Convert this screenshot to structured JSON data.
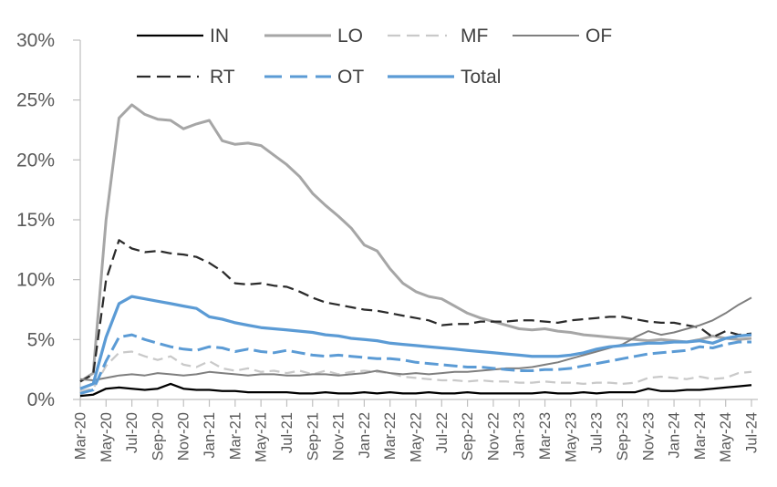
{
  "chart_data": {
    "type": "line",
    "title": "",
    "xlabel": "",
    "ylabel": "",
    "ylim": [
      0,
      30
    ],
    "grid": false,
    "legend_position": "top",
    "y_tick_labels": [
      "0%",
      "5%",
      "10%",
      "15%",
      "20%",
      "25%",
      "30%"
    ],
    "x_tick_labels": [
      "Mar-20",
      "May-20",
      "Jul-20",
      "Sep-20",
      "Nov-20",
      "Jan-21",
      "Mar-21",
      "May-21",
      "Jul-21",
      "Sep-21",
      "Nov-21",
      "Jan-22",
      "Mar-22",
      "May-22",
      "Jul-22",
      "Sep-22",
      "Nov-22",
      "Jan-23",
      "Mar-23",
      "May-23",
      "Jul-23",
      "Sep-23",
      "Nov-23",
      "Jan-24",
      "Mar-24",
      "May-24",
      "Jul-24"
    ],
    "categories": [
      "Mar-20",
      "Apr-20",
      "May-20",
      "Jun-20",
      "Jul-20",
      "Aug-20",
      "Sep-20",
      "Oct-20",
      "Nov-20",
      "Dec-20",
      "Jan-21",
      "Feb-21",
      "Mar-21",
      "Apr-21",
      "May-21",
      "Jun-21",
      "Jul-21",
      "Aug-21",
      "Sep-21",
      "Oct-21",
      "Nov-21",
      "Dec-21",
      "Jan-22",
      "Feb-22",
      "Mar-22",
      "Apr-22",
      "May-22",
      "Jun-22",
      "Jul-22",
      "Aug-22",
      "Sep-22",
      "Oct-22",
      "Nov-22",
      "Dec-22",
      "Jan-23",
      "Feb-23",
      "Mar-23",
      "Apr-23",
      "May-23",
      "Jun-23",
      "Jul-23",
      "Aug-23",
      "Sep-23",
      "Oct-23",
      "Nov-23",
      "Dec-23",
      "Jan-24",
      "Feb-24",
      "Mar-24",
      "Apr-24",
      "May-24",
      "Jun-24",
      "Jul-24"
    ],
    "colors": {
      "axis": "#bfbfbf",
      "tick_label": "#595959",
      "legend_label": "#404040",
      "blue_accent": "#5b9bd5"
    },
    "legend_rows": [
      [
        "IN",
        "LO",
        "MF",
        "OF"
      ],
      [
        "RT",
        "OT",
        "Total"
      ]
    ],
    "series": [
      {
        "name": "IN",
        "color": "#000000",
        "style": "solid",
        "width": 2.25,
        "values": [
          0.3,
          0.4,
          0.9,
          1.0,
          0.9,
          0.8,
          0.9,
          1.3,
          0.9,
          0.8,
          0.8,
          0.7,
          0.7,
          0.6,
          0.6,
          0.6,
          0.6,
          0.5,
          0.5,
          0.6,
          0.5,
          0.5,
          0.6,
          0.5,
          0.6,
          0.5,
          0.5,
          0.6,
          0.5,
          0.5,
          0.6,
          0.5,
          0.5,
          0.5,
          0.5,
          0.5,
          0.6,
          0.5,
          0.5,
          0.6,
          0.5,
          0.6,
          0.6,
          0.6,
          0.9,
          0.7,
          0.7,
          0.8,
          0.8,
          0.9,
          1.0,
          1.1,
          1.2
        ]
      },
      {
        "name": "LO",
        "color": "#a6a6a6",
        "style": "solid",
        "width": 3,
        "values": [
          1.5,
          2.2,
          15.0,
          23.5,
          24.6,
          23.8,
          23.4,
          23.3,
          22.6,
          23.0,
          23.3,
          21.6,
          21.3,
          21.4,
          21.2,
          20.4,
          19.6,
          18.6,
          17.2,
          16.2,
          15.3,
          14.3,
          12.9,
          12.4,
          10.9,
          9.7,
          9.0,
          8.6,
          8.4,
          7.8,
          7.2,
          6.8,
          6.5,
          6.2,
          5.9,
          5.8,
          5.9,
          5.7,
          5.6,
          5.4,
          5.3,
          5.2,
          5.1,
          5.0,
          4.9,
          5.0,
          4.9,
          4.8,
          5.0,
          5.3,
          5.1,
          5.0,
          5.1
        ]
      },
      {
        "name": "MF",
        "color": "#c9c9c9",
        "style": "dashed",
        "width": 2.25,
        "dash": "11,6",
        "legend_dash": "14,7,14,7,14,7,2,40",
        "values": [
          0.7,
          0.9,
          2.8,
          3.9,
          4.0,
          3.6,
          3.3,
          3.6,
          2.9,
          2.7,
          3.2,
          2.6,
          2.4,
          2.6,
          2.3,
          2.4,
          2.2,
          2.4,
          2.1,
          2.4,
          2.1,
          2.3,
          2.4,
          2.3,
          2.2,
          1.9,
          1.8,
          1.7,
          1.6,
          1.6,
          1.5,
          1.6,
          1.5,
          1.5,
          1.4,
          1.4,
          1.5,
          1.4,
          1.4,
          1.3,
          1.4,
          1.4,
          1.3,
          1.4,
          1.8,
          1.9,
          1.8,
          1.7,
          1.9,
          1.7,
          1.8,
          2.2,
          2.3
        ]
      },
      {
        "name": "OF",
        "color": "#7f7f7f",
        "style": "solid",
        "width": 2,
        "values": [
          1.7,
          1.6,
          1.8,
          2.0,
          2.1,
          2.0,
          2.2,
          2.1,
          2.0,
          2.1,
          2.3,
          2.2,
          2.1,
          2.0,
          2.1,
          2.1,
          2.0,
          2.0,
          2.1,
          2.1,
          2.0,
          2.1,
          2.2,
          2.4,
          2.2,
          2.1,
          2.2,
          2.1,
          2.2,
          2.3,
          2.3,
          2.4,
          2.5,
          2.6,
          2.6,
          2.7,
          2.9,
          3.1,
          3.4,
          3.7,
          4.0,
          4.3,
          4.6,
          5.2,
          5.7,
          5.4,
          5.6,
          5.9,
          6.2,
          6.6,
          7.2,
          7.9,
          8.5
        ]
      },
      {
        "name": "RT",
        "color": "#2b2b2b",
        "style": "dashed",
        "width": 2.25,
        "dash": "12,6",
        "legend_dash": "15,7,15,7,15,7,2,40",
        "values": [
          1.5,
          2.1,
          10.0,
          13.3,
          12.6,
          12.3,
          12.4,
          12.2,
          12.1,
          11.9,
          11.4,
          10.7,
          9.7,
          9.6,
          9.7,
          9.5,
          9.4,
          9.0,
          8.5,
          8.1,
          7.9,
          7.7,
          7.5,
          7.4,
          7.2,
          7.0,
          6.8,
          6.6,
          6.2,
          6.3,
          6.3,
          6.5,
          6.5,
          6.5,
          6.6,
          6.6,
          6.5,
          6.4,
          6.6,
          6.7,
          6.8,
          6.9,
          6.9,
          6.7,
          6.5,
          6.4,
          6.4,
          6.2,
          6.0,
          5.2,
          5.7,
          5.4,
          5.5
        ]
      },
      {
        "name": "OT",
        "color": "#5b9bd5",
        "style": "dashed",
        "width": 3,
        "dash": "15,6",
        "legend_dash": "19,9,19,9,17,99",
        "values": [
          0.5,
          0.8,
          3.2,
          5.2,
          5.4,
          5.0,
          4.7,
          4.4,
          4.2,
          4.1,
          4.4,
          4.3,
          4.0,
          4.2,
          4.0,
          3.9,
          4.1,
          3.9,
          3.7,
          3.6,
          3.7,
          3.6,
          3.5,
          3.4,
          3.4,
          3.3,
          3.1,
          3.0,
          2.9,
          2.8,
          2.7,
          2.7,
          2.6,
          2.5,
          2.4,
          2.4,
          2.5,
          2.5,
          2.6,
          2.8,
          3.0,
          3.2,
          3.4,
          3.6,
          3.8,
          3.9,
          4.0,
          4.1,
          4.4,
          4.3,
          4.6,
          4.8,
          4.8
        ]
      },
      {
        "name": "Total",
        "color": "#5b9bd5",
        "style": "solid",
        "width": 3.25,
        "values": [
          0.9,
          1.3,
          5.2,
          8.0,
          8.6,
          8.4,
          8.2,
          8.0,
          7.8,
          7.6,
          6.9,
          6.7,
          6.4,
          6.2,
          6.0,
          5.9,
          5.8,
          5.7,
          5.6,
          5.4,
          5.3,
          5.1,
          5.0,
          4.9,
          4.7,
          4.6,
          4.5,
          4.4,
          4.3,
          4.2,
          4.1,
          4.0,
          3.9,
          3.8,
          3.7,
          3.6,
          3.6,
          3.6,
          3.7,
          3.9,
          4.2,
          4.4,
          4.5,
          4.6,
          4.7,
          4.7,
          4.8,
          4.8,
          4.9,
          4.7,
          5.1,
          5.3,
          5.4
        ]
      }
    ],
    "draw_order": [
      "LO",
      "MF",
      "RT",
      "OF",
      "IN",
      "OT",
      "Total"
    ]
  }
}
